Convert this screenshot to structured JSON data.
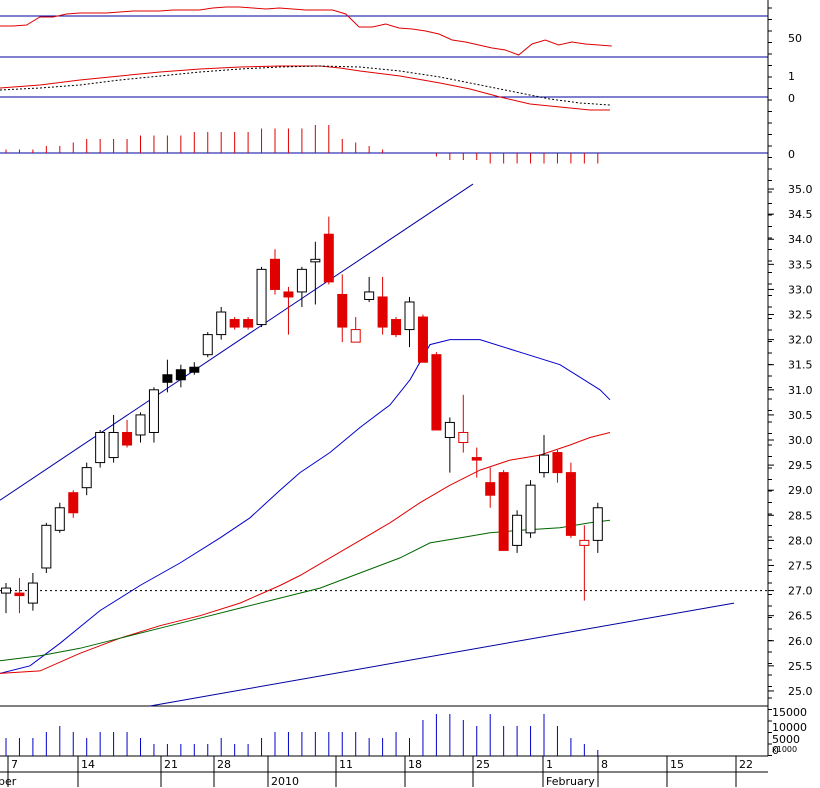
{
  "chart_data": {
    "type": "candlestick",
    "panels": {
      "oscillator": {
        "ticks": [
          "50"
        ]
      },
      "macd": {
        "ticks": [
          "1",
          "0"
        ]
      },
      "histogram": {
        "ticks": [
          "0"
        ]
      },
      "price": {
        "ylim": [
          24.7,
          35.3
        ],
        "ticks": [
          "35.0",
          "34.5",
          "34.0",
          "33.5",
          "33.0",
          "32.5",
          "32.0",
          "31.5",
          "31.0",
          "30.5",
          "30.0",
          "29.5",
          "29.0",
          "28.5",
          "28.0",
          "27.5",
          "27.0",
          "26.5",
          "26.0",
          "25.5",
          "25.0"
        ],
        "reference_level": 27.0
      },
      "volume": {
        "ticks": [
          "15000",
          "10000",
          "5000",
          "0"
        ],
        "unit": "x1000"
      }
    },
    "x_axis": {
      "labels": [
        "ber",
        "7",
        "14",
        "21",
        "28",
        "2010",
        "11",
        "18",
        "25",
        "1",
        "February",
        "8",
        "15",
        "22"
      ]
    },
    "candles": [
      {
        "o": 26.95,
        "h": 27.15,
        "l": 26.55,
        "c": 27.05,
        "color": "white"
      },
      {
        "o": 26.9,
        "h": 27.25,
        "l": 26.55,
        "c": 26.95,
        "color": "red"
      },
      {
        "o": 26.75,
        "h": 27.35,
        "l": 26.6,
        "c": 27.15,
        "color": "white"
      },
      {
        "o": 27.45,
        "h": 28.35,
        "l": 27.35,
        "c": 28.3,
        "color": "white"
      },
      {
        "o": 28.2,
        "h": 28.75,
        "l": 28.15,
        "c": 28.65,
        "color": "white"
      },
      {
        "o": 28.95,
        "h": 29.0,
        "l": 28.45,
        "c": 28.55,
        "color": "red"
      },
      {
        "o": 29.05,
        "h": 29.55,
        "l": 28.9,
        "c": 29.45,
        "color": "white"
      },
      {
        "o": 29.55,
        "h": 30.2,
        "l": 29.45,
        "c": 30.15,
        "color": "white"
      },
      {
        "o": 29.65,
        "h": 30.5,
        "l": 29.55,
        "c": 30.15,
        "color": "white"
      },
      {
        "o": 30.15,
        "h": 30.4,
        "l": 29.85,
        "c": 29.9,
        "color": "red"
      },
      {
        "o": 30.1,
        "h": 30.55,
        "l": 29.95,
        "c": 30.5,
        "color": "white"
      },
      {
        "o": 30.15,
        "h": 31.05,
        "l": 29.95,
        "c": 31.0,
        "color": "white"
      },
      {
        "o": 31.3,
        "h": 31.6,
        "l": 30.95,
        "c": 31.15,
        "color": "black"
      },
      {
        "o": 31.4,
        "h": 31.5,
        "l": 31.05,
        "c": 31.2,
        "color": "black"
      },
      {
        "o": 31.45,
        "h": 31.55,
        "l": 31.3,
        "c": 31.35,
        "color": "black"
      },
      {
        "o": 31.7,
        "h": 32.15,
        "l": 31.65,
        "c": 32.1,
        "color": "white"
      },
      {
        "o": 32.1,
        "h": 32.65,
        "l": 32.0,
        "c": 32.55,
        "color": "white"
      },
      {
        "o": 32.4,
        "h": 32.45,
        "l": 32.2,
        "c": 32.25,
        "color": "red"
      },
      {
        "o": 32.4,
        "h": 32.45,
        "l": 32.2,
        "c": 32.25,
        "color": "red"
      },
      {
        "o": 32.3,
        "h": 33.45,
        "l": 32.25,
        "c": 33.4,
        "color": "white"
      },
      {
        "o": 33.6,
        "h": 33.8,
        "l": 32.9,
        "c": 33.0,
        "color": "red"
      },
      {
        "o": 32.95,
        "h": 33.05,
        "l": 32.1,
        "c": 32.85,
        "color": "red"
      },
      {
        "o": 32.95,
        "h": 33.45,
        "l": 32.65,
        "c": 33.4,
        "color": "white"
      },
      {
        "o": 33.55,
        "h": 33.95,
        "l": 32.7,
        "c": 33.6,
        "color": "white"
      },
      {
        "o": 34.1,
        "h": 34.45,
        "l": 33.1,
        "c": 33.15,
        "color": "red"
      },
      {
        "o": 32.9,
        "h": 33.3,
        "l": 31.95,
        "c": 32.25,
        "color": "red"
      },
      {
        "o": 32.2,
        "h": 32.45,
        "l": 31.95,
        "c": 31.95,
        "color": "red_hollow"
      },
      {
        "o": 32.8,
        "h": 33.25,
        "l": 32.75,
        "c": 32.95,
        "color": "white"
      },
      {
        "o": 32.85,
        "h": 33.25,
        "l": 32.1,
        "c": 32.25,
        "color": "red"
      },
      {
        "o": 32.4,
        "h": 32.45,
        "l": 32.05,
        "c": 32.1,
        "color": "red"
      },
      {
        "o": 32.2,
        "h": 32.85,
        "l": 31.85,
        "c": 32.75,
        "color": "white"
      },
      {
        "o": 32.45,
        "h": 32.5,
        "l": 31.55,
        "c": 31.55,
        "color": "red"
      },
      {
        "o": 31.7,
        "h": 31.75,
        "l": 30.2,
        "c": 30.2,
        "color": "red"
      },
      {
        "o": 30.05,
        "h": 30.45,
        "l": 29.35,
        "c": 30.35,
        "color": "white"
      },
      {
        "o": 30.15,
        "h": 30.9,
        "l": 29.75,
        "c": 29.95,
        "color": "red_hollow"
      },
      {
        "o": 29.65,
        "h": 29.85,
        "l": 29.25,
        "c": 29.6,
        "color": "red"
      },
      {
        "o": 29.15,
        "h": 29.45,
        "l": 28.65,
        "c": 28.9,
        "color": "red"
      },
      {
        "o": 29.35,
        "h": 29.4,
        "l": 27.8,
        "c": 27.8,
        "color": "red"
      },
      {
        "o": 27.9,
        "h": 28.6,
        "l": 27.75,
        "c": 28.5,
        "color": "white"
      },
      {
        "o": 28.15,
        "h": 29.2,
        "l": 28.05,
        "c": 29.1,
        "color": "white"
      },
      {
        "o": 29.35,
        "h": 30.1,
        "l": 29.25,
        "c": 29.7,
        "color": "white"
      },
      {
        "o": 29.75,
        "h": 29.8,
        "l": 29.15,
        "c": 29.35,
        "color": "red"
      },
      {
        "o": 29.35,
        "h": 29.55,
        "l": 28.05,
        "c": 28.1,
        "color": "red"
      },
      {
        "o": 27.9,
        "h": 28.3,
        "l": 26.8,
        "c": 28.0,
        "color": "red_hollow"
      },
      {
        "o": 28.0,
        "h": 28.75,
        "l": 27.75,
        "c": 28.65,
        "color": "white"
      }
    ],
    "volume": [
      3,
      3,
      3,
      4,
      5,
      4,
      3,
      4,
      4,
      4,
      3,
      2,
      2,
      2,
      2,
      2,
      3,
      2,
      2,
      3,
      4,
      4,
      4,
      4,
      4,
      4,
      4,
      3,
      3,
      4,
      3,
      6,
      7,
      7,
      6,
      5,
      7,
      5,
      5,
      5,
      7,
      5,
      3,
      2,
      1
    ],
    "histogram": [
      1,
      1,
      1,
      2,
      2,
      3,
      4,
      4,
      4,
      4,
      5,
      5,
      5,
      5,
      6,
      6,
      6,
      6,
      6,
      7,
      7,
      7,
      7,
      8,
      8,
      4,
      3,
      2,
      1,
      0,
      0,
      0,
      -1,
      -2,
      -2,
      -2,
      -3,
      -3,
      -3,
      -3,
      -3,
      -3,
      -3,
      -3,
      -3
    ]
  }
}
